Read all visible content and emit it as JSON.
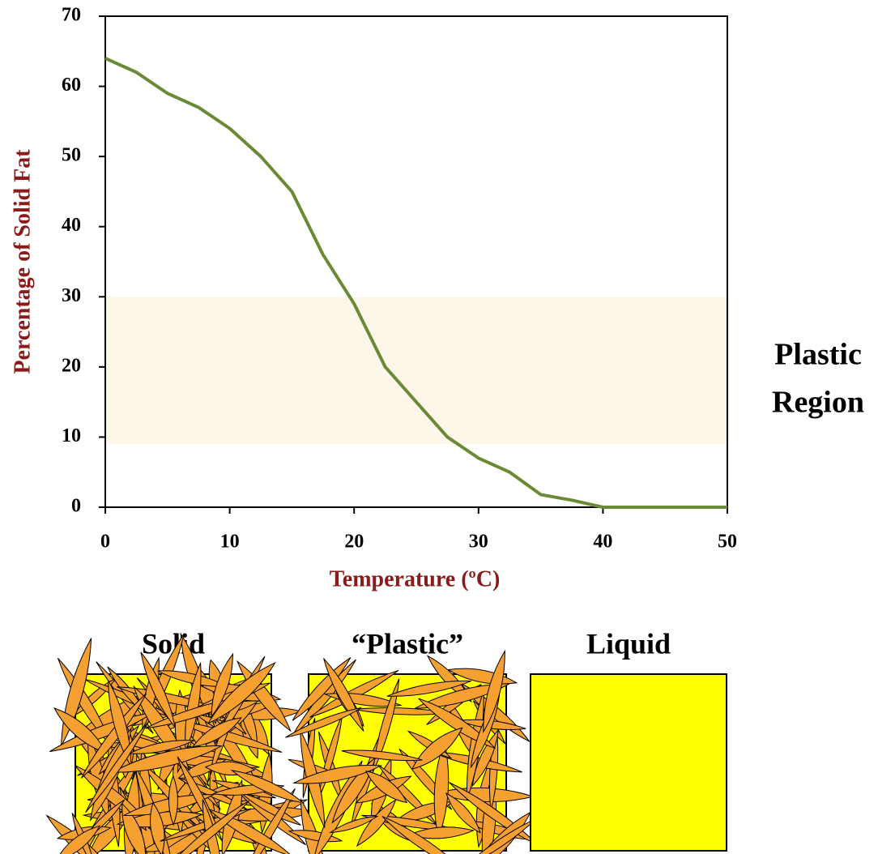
{
  "chart_data": {
    "type": "line",
    "x_label": "Temperature (ºC)",
    "y_label": "Percentage of Solid Fat",
    "x": [
      0,
      2.5,
      5,
      7.5,
      10,
      12.5,
      15,
      17.5,
      20,
      22.5,
      25,
      27.5,
      30,
      32.5,
      35,
      37.5,
      40,
      45,
      50
    ],
    "series": [
      {
        "color": "#6b8a35",
        "values": [
          64,
          62,
          59,
          57,
          54,
          50,
          45,
          36,
          29,
          20,
          15,
          10,
          7,
          5,
          1.8,
          1,
          0,
          0,
          0
        ]
      }
    ],
    "xlim": [
      0,
      50
    ],
    "xticks": [
      0,
      10,
      20,
      30,
      40,
      50
    ],
    "ylim": [
      0,
      70
    ],
    "yticks": [
      0,
      10,
      20,
      30,
      40,
      50,
      60,
      70
    ],
    "shaded_range": [
      9,
      30
    ],
    "shaded_color": "#fdf7ea",
    "annotation": [
      "Plastic",
      "Region"
    ]
  },
  "diagram": {
    "panels": [
      "Solid",
      "“Plastic”",
      "Liquid"
    ]
  }
}
